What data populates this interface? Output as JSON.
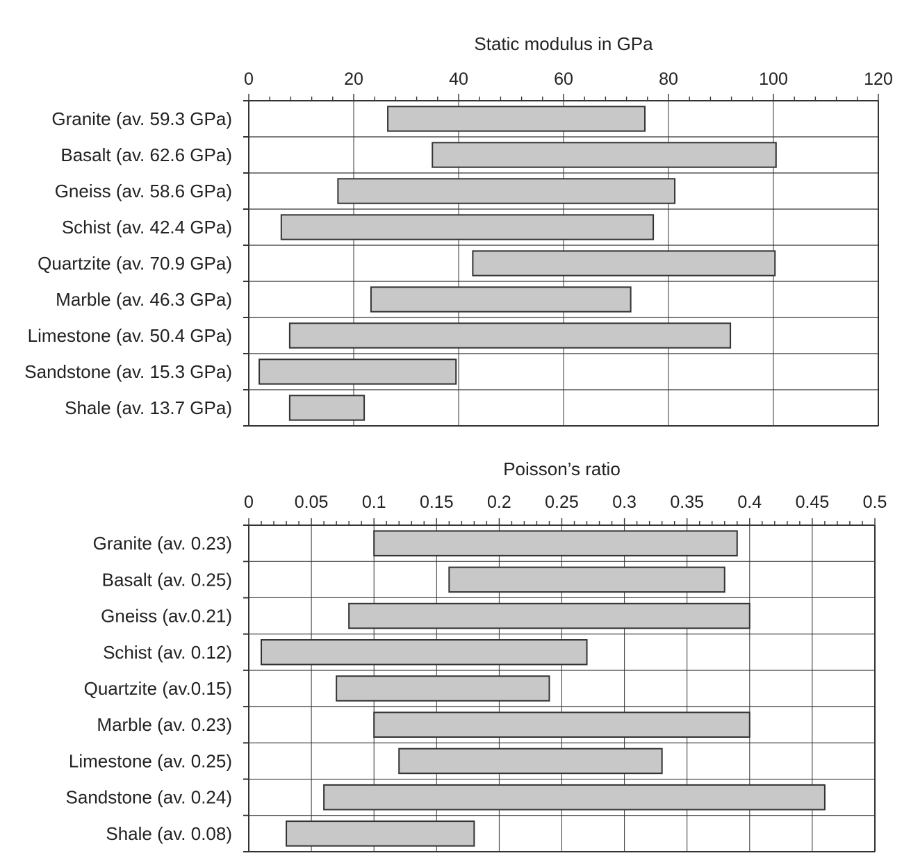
{
  "colors": {
    "bar_fill": "#c8c8c8",
    "bar_stroke": "#333333",
    "grid": "#333333",
    "text": "#222222"
  },
  "chart_data": [
    {
      "type": "bar",
      "orientation": "horizontal",
      "style": "floating range bars",
      "title": "Static modulus in GPa",
      "xlabel": "Static modulus in GPa",
      "xaxis_position": "top",
      "xlim": [
        0,
        120
      ],
      "xticks": [
        0,
        20,
        40,
        60,
        80,
        100,
        120
      ],
      "minor_tick_step": 4,
      "grid": true,
      "categories": [
        "Granite (av. 59.3 GPa)",
        "Basalt (av. 62.6 GPa)",
        "Gneiss (av. 58.6 GPa)",
        "Schist (av. 42.4 GPa)",
        "Quartzite (av. 70.9 GPa)",
        "Marble (av. 46.3 GPa)",
        "Limestone (av. 50.4 GPa)",
        "Sandstone (av. 15.3 GPa)",
        "Shale (av. 13.7 GPa)"
      ],
      "ranges": [
        [
          26.5,
          75.5
        ],
        [
          35,
          100.5
        ],
        [
          17,
          81.2
        ],
        [
          6.2,
          77.1
        ],
        [
          42.7,
          100.3
        ],
        [
          23.3,
          72.8
        ],
        [
          7.8,
          91.8
        ],
        [
          2,
          39.5
        ],
        [
          7.8,
          22
        ]
      ]
    },
    {
      "type": "bar",
      "orientation": "horizontal",
      "style": "floating range bars",
      "title": "Poisson’s ratio",
      "xlabel": "Poisson’s ratio",
      "xaxis_position": "top",
      "xlim": [
        0,
        0.5
      ],
      "xticks": [
        0,
        0.05,
        0.1,
        0.15,
        0.2,
        0.25,
        0.3,
        0.35,
        0.4,
        0.45,
        0.5
      ],
      "xtick_labels": [
        "0",
        "0.05",
        "0.1",
        "0.15",
        "0.2",
        "0.25",
        "0.3",
        "0.35",
        "0.4",
        "0.45",
        "0.5"
      ],
      "minor_tick_step": 0.01,
      "grid": true,
      "categories": [
        "Granite (av. 0.23)",
        "Basalt (av. 0.25)",
        "Gneiss (av.0.21)",
        "Schist (av. 0.12)",
        "Quartzite (av.0.15)",
        "Marble (av. 0.23)",
        "Limestone (av. 0.25)",
        "Sandstone (av. 0.24)",
        "Shale (av. 0.08)"
      ],
      "ranges": [
        [
          0.1,
          0.39
        ],
        [
          0.16,
          0.38
        ],
        [
          0.08,
          0.4
        ],
        [
          0.01,
          0.27
        ],
        [
          0.07,
          0.24
        ],
        [
          0.1,
          0.4
        ],
        [
          0.12,
          0.33
        ],
        [
          0.06,
          0.46
        ],
        [
          0.03,
          0.18
        ]
      ]
    }
  ]
}
